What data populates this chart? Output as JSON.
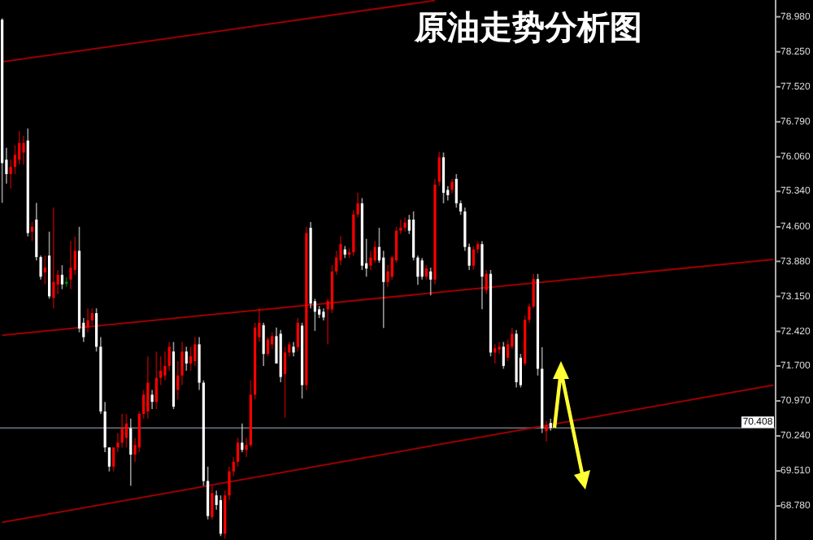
{
  "chart_data": {
    "type": "candlestick",
    "title": "原油走势分析图",
    "categories": [
      null,
      null,
      null,
      null,
      null,
      null,
      null,
      null,
      null,
      null,
      null,
      null,
      null,
      null,
      null,
      null,
      null,
      null,
      null,
      null,
      null,
      null,
      null,
      null,
      null,
      null,
      null,
      null,
      null,
      null,
      null,
      null,
      null,
      null,
      null,
      null,
      null,
      null,
      null,
      null,
      null,
      null,
      null,
      null,
      null,
      null,
      null,
      null,
      null,
      null,
      null,
      null,
      null,
      null,
      null,
      null,
      null,
      null,
      null,
      null,
      null,
      null,
      null,
      null,
      null,
      null,
      null,
      null,
      null,
      null,
      null,
      null,
      null,
      null,
      null,
      null,
      null,
      null,
      null,
      null,
      null,
      null,
      null,
      null,
      null,
      null,
      null,
      null,
      null,
      null,
      null,
      null,
      null,
      null,
      null,
      null,
      null,
      null,
      null,
      null,
      null,
      null,
      null,
      null,
      null,
      null,
      null,
      null,
      null,
      null,
      null,
      null,
      null,
      null,
      null,
      null,
      null,
      null,
      null,
      null,
      null,
      null,
      null,
      null,
      null,
      null,
      null,
      null,
      null,
      null,
      null,
      null,
      null,
      null,
      null,
      null,
      null,
      null,
      null,
      null,
      null,
      null,
      null,
      null,
      null,
      null,
      null,
      null,
      null,
      null,
      null,
      null,
      null,
      null,
      null,
      null,
      null,
      null,
      null,
      null,
      null,
      null,
      null,
      null,
      null,
      null,
      null,
      null,
      null,
      null,
      null,
      null,
      null,
      null,
      null,
      null,
      null,
      null,
      null,
      null,
      null
    ],
    "ohlc": [
      [
        78.92,
        78.95,
        75.1,
        75.93
      ],
      [
        76.0,
        76.25,
        75.5,
        75.7
      ],
      [
        75.7,
        76.0,
        75.4,
        75.85
      ],
      [
        75.85,
        76.3,
        75.7,
        76.1
      ],
      [
        76.0,
        76.6,
        75.9,
        76.35
      ],
      [
        76.15,
        76.5,
        75.9,
        76.35
      ],
      [
        76.4,
        76.65,
        74.4,
        74.47
      ],
      [
        74.5,
        74.7,
        74.3,
        74.6
      ],
      [
        74.75,
        75.1,
        73.9,
        73.97
      ],
      [
        73.97,
        74.0,
        73.5,
        73.56
      ],
      [
        73.65,
        74.0,
        73.4,
        73.75
      ],
      [
        74.0,
        74.5,
        73.1,
        73.15
      ],
      [
        73.12,
        75.0,
        72.9,
        73.45
      ],
      [
        73.4,
        73.7,
        73.2,
        73.6
      ],
      [
        73.6,
        73.8,
        73.3,
        73.4
      ],
      [
        73.45,
        73.55,
        73.35,
        73.42
      ],
      [
        73.5,
        74.3,
        73.3,
        73.75
      ],
      [
        73.7,
        74.4,
        73.6,
        74.1
      ],
      [
        74.1,
        74.6,
        72.4,
        72.48
      ],
      [
        72.6,
        72.7,
        72.2,
        72.3
      ],
      [
        72.5,
        72.9,
        72.4,
        72.65
      ],
      [
        72.65,
        72.9,
        72.55,
        72.8
      ],
      [
        72.8,
        72.9,
        72.0,
        72.1
      ],
      [
        72.1,
        72.3,
        70.7,
        70.75
      ],
      [
        70.75,
        70.95,
        69.9,
        70.0
      ],
      [
        70.0,
        70.0,
        69.5,
        69.6
      ],
      [
        69.6,
        70.0,
        69.5,
        70.0
      ],
      [
        70.0,
        70.3,
        69.9,
        70.1
      ],
      [
        70.1,
        70.7,
        70.0,
        70.4
      ],
      [
        70.2,
        70.7,
        70.0,
        70.5
      ],
      [
        70.4,
        70.6,
        69.2,
        69.85
      ],
      [
        69.85,
        70.2,
        69.7,
        70.05
      ],
      [
        70.0,
        70.75,
        69.9,
        70.7
      ],
      [
        70.7,
        71.2,
        70.6,
        71.1
      ],
      [
        70.75,
        71.9,
        70.6,
        71.35
      ],
      [
        71.1,
        71.2,
        70.8,
        70.95
      ],
      [
        70.95,
        72.0,
        70.8,
        71.45
      ],
      [
        71.45,
        71.9,
        71.3,
        71.6
      ],
      [
        71.5,
        72.0,
        71.4,
        71.7
      ],
      [
        71.7,
        72.2,
        71.6,
        72.1
      ],
      [
        72.0,
        72.2,
        70.8,
        70.85
      ],
      [
        71.2,
        71.8,
        71.0,
        71.5
      ],
      [
        71.5,
        72.2,
        71.3,
        72.0
      ],
      [
        72.0,
        72.1,
        71.6,
        71.75
      ],
      [
        71.75,
        72.1,
        71.6,
        71.9
      ],
      [
        71.8,
        72.3,
        71.7,
        72.15
      ],
      [
        72.15,
        72.3,
        71.2,
        71.35
      ],
      [
        71.35,
        71.4,
        69.2,
        69.3
      ],
      [
        69.3,
        69.6,
        68.5,
        68.57
      ],
      [
        68.55,
        69.2,
        68.5,
        69.05
      ],
      [
        69.0,
        69.1,
        68.7,
        68.8
      ],
      [
        68.9,
        69.0,
        68.15,
        68.2
      ],
      [
        68.2,
        69.1,
        68.1,
        69.0
      ],
      [
        69.0,
        69.6,
        68.9,
        69.5
      ],
      [
        69.5,
        69.8,
        69.4,
        69.7
      ],
      [
        69.7,
        70.2,
        69.6,
        70.1
      ],
      [
        70.1,
        70.5,
        69.9,
        69.95
      ],
      [
        69.95,
        70.2,
        69.8,
        70.05
      ],
      [
        70.05,
        71.4,
        70.0,
        71.1
      ],
      [
        71.1,
        72.6,
        71.0,
        72.5
      ],
      [
        72.3,
        72.9,
        72.2,
        72.6
      ],
      [
        72.55,
        72.6,
        71.7,
        71.95
      ],
      [
        71.95,
        72.3,
        71.9,
        72.25
      ],
      [
        72.15,
        72.4,
        72.05,
        72.32
      ],
      [
        72.32,
        72.5,
        71.75,
        71.75
      ],
      [
        72.37,
        72.45,
        71.36,
        71.47
      ],
      [
        71.53,
        72.1,
        70.62,
        71.98
      ],
      [
        71.98,
        72.2,
        71.9,
        72.15
      ],
      [
        72.1,
        72.2,
        71.9,
        71.98
      ],
      [
        72.09,
        72.7,
        72.0,
        72.6
      ],
      [
        72.54,
        72.6,
        71.02,
        71.3
      ],
      [
        71.3,
        74.6,
        71.2,
        74.47
      ],
      [
        74.58,
        74.7,
        72.9,
        73.0
      ],
      [
        73.05,
        73.1,
        72.43,
        72.83
      ],
      [
        72.88,
        72.95,
        72.7,
        72.77
      ],
      [
        72.83,
        72.9,
        72.65,
        72.71
      ],
      [
        72.88,
        73.1,
        72.15,
        73.05
      ],
      [
        72.88,
        73.8,
        72.8,
        73.67
      ],
      [
        73.67,
        74.1,
        73.6,
        73.96
      ],
      [
        73.9,
        74.41,
        73.8,
        74.24
      ],
      [
        74.13,
        74.2,
        73.95,
        74.02
      ],
      [
        74.02,
        74.15,
        73.95,
        74.07
      ],
      [
        74.07,
        74.95,
        74.0,
        74.86
      ],
      [
        74.86,
        75.31,
        74.8,
        75.09
      ],
      [
        75.09,
        75.2,
        73.7,
        73.79
      ],
      [
        73.84,
        74.35,
        73.56,
        73.73
      ],
      [
        73.79,
        74.1,
        73.7,
        73.96
      ],
      [
        73.9,
        74.3,
        73.85,
        74.18
      ],
      [
        74.18,
        74.58,
        73.85,
        73.9
      ],
      [
        73.96,
        74.1,
        72.49,
        73.45
      ],
      [
        73.45,
        73.8,
        73.35,
        73.67
      ],
      [
        73.56,
        74.0,
        73.5,
        73.96
      ],
      [
        73.9,
        74.6,
        73.85,
        74.52
      ],
      [
        74.52,
        74.75,
        74.45,
        74.58
      ],
      [
        74.58,
        74.8,
        74.5,
        74.69
      ],
      [
        74.75,
        74.85,
        74.45,
        74.52
      ],
      [
        74.75,
        74.92,
        73.9,
        73.96
      ],
      [
        73.96,
        74.0,
        73.39,
        73.56
      ],
      [
        73.9,
        73.95,
        73.5,
        73.56
      ],
      [
        73.56,
        73.8,
        73.5,
        73.73
      ],
      [
        73.67,
        73.75,
        73.17,
        73.5
      ],
      [
        73.5,
        75.6,
        73.4,
        75.48
      ],
      [
        75.54,
        76.16,
        75.45,
        76.05
      ],
      [
        76.05,
        76.15,
        75.09,
        75.31
      ],
      [
        75.37,
        75.45,
        75.15,
        75.26
      ],
      [
        75.37,
        75.6,
        75.3,
        75.54
      ],
      [
        75.6,
        75.7,
        75.0,
        75.09
      ],
      [
        75.09,
        75.15,
        74.85,
        74.92
      ],
      [
        74.92,
        75.0,
        74.1,
        74.18
      ],
      [
        74.18,
        74.25,
        73.7,
        73.79
      ],
      [
        73.79,
        74.2,
        73.7,
        74.13
      ],
      [
        74.13,
        74.3,
        74.05,
        74.24
      ],
      [
        74.24,
        74.3,
        72.88,
        73.56
      ],
      [
        73.28,
        73.7,
        73.2,
        73.62
      ],
      [
        73.62,
        73.7,
        71.9,
        71.98
      ],
      [
        71.98,
        72.15,
        71.75,
        72.07
      ],
      [
        72.04,
        72.2,
        71.95,
        72.1
      ],
      [
        72.1,
        72.2,
        71.64,
        71.7
      ],
      [
        71.87,
        72.25,
        71.8,
        72.15
      ],
      [
        72.1,
        72.49,
        72.05,
        72.37
      ],
      [
        72.37,
        72.45,
        71.25,
        71.36
      ],
      [
        71.87,
        71.95,
        71.25,
        71.3
      ],
      [
        71.75,
        72.75,
        71.7,
        72.66
      ],
      [
        72.66,
        73.0,
        72.6,
        72.94
      ],
      [
        72.94,
        73.62,
        72.9,
        73.51
      ],
      [
        73.51,
        73.62,
        71.5,
        71.64
      ],
      [
        71.64,
        72.09,
        70.3,
        70.4
      ],
      [
        70.34,
        70.55,
        70.12,
        70.46
      ],
      [
        70.51,
        70.6,
        70.35,
        70.41
      ],
      null,
      null,
      null,
      null,
      null,
      null,
      null,
      null,
      null,
      null,
      null,
      null,
      null,
      null,
      null,
      null,
      null,
      null,
      null,
      null,
      null,
      null,
      null,
      null,
      null,
      null,
      null,
      null,
      null,
      null,
      null,
      null,
      null,
      null,
      null,
      null,
      null,
      null,
      null,
      null,
      null,
      null,
      null,
      null,
      null,
      null,
      null,
      null,
      null,
      null,
      null,
      null
    ],
    "colors": [
      "#ffffff",
      "#ffffff",
      "#ff0000",
      "#ff0000",
      "#ff0000",
      "#ff0000",
      "#ffffff",
      "#ff0000",
      "#ffffff",
      "#ffffff",
      "#ff0000",
      "#ffffff",
      "#ff0000",
      "#ff0000",
      "#ffffff",
      "#00a000",
      "#ff0000",
      "#ff0000",
      "#ffffff",
      "#ffffff",
      "#ff0000",
      "#ff0000",
      "#ffffff",
      "#ffffff",
      "#ffffff",
      "#ffffff",
      "#ff0000",
      "#ff0000",
      "#ff0000",
      "#ff0000",
      "#ffffff",
      "#ff0000",
      "#ff0000",
      "#ff0000",
      "#ff0000",
      "#ffffff",
      "#ff0000",
      "#ff0000",
      "#ff0000",
      "#ff0000",
      "#ffffff",
      "#ff0000",
      "#ff0000",
      "#ffffff",
      "#ff0000",
      "#ff0000",
      "#ffffff",
      "#ffffff",
      "#ffffff",
      "#ff0000",
      "#ffffff",
      "#ffffff",
      "#ff0000",
      "#ff0000",
      "#ff0000",
      "#ff0000",
      "#ffffff",
      "#ff0000",
      "#ff0000",
      "#ff0000",
      "#ff0000",
      "#ffffff",
      "#ff0000",
      "#ff0000",
      "#ffffff",
      "#ffffff",
      "#ff0000",
      "#ff0000",
      "#ffffff",
      "#ff0000",
      "#ffffff",
      "#ff0000",
      "#ffffff",
      "#ffffff",
      "#ffffff",
      "#ffffff",
      "#ff0000",
      "#ff0000",
      "#ff0000",
      "#ff0000",
      "#ffffff",
      "#ff0000",
      "#ff0000",
      "#ff0000",
      "#ffffff",
      "#ffffff",
      "#ff0000",
      "#ff0000",
      "#ffffff",
      "#ffffff",
      "#ff0000",
      "#ff0000",
      "#ff0000",
      "#ff0000",
      "#ff0000",
      "#ffffff",
      "#ffffff",
      "#ffffff",
      "#ffffff",
      "#ff0000",
      "#ffffff",
      "#ff0000",
      "#ff0000",
      "#ffffff",
      "#ffffff",
      "#ff0000",
      "#ffffff",
      "#ffffff",
      "#ffffff",
      "#ffffff",
      "#ff0000",
      "#ff0000",
      "#ffffff",
      "#ff0000",
      "#ffffff",
      "#ff0000",
      "#ff0000",
      "#ffffff",
      "#ff0000",
      "#ff0000",
      "#ffffff",
      "#ffffff",
      "#ff0000",
      "#ff0000",
      "#ff0000",
      "#ffffff",
      "#ffffff",
      "#ff0000",
      "#ffffff",
      null,
      null,
      null,
      null,
      null,
      null,
      null,
      null,
      null,
      null,
      null,
      null,
      null,
      null,
      null,
      null,
      null,
      null,
      null,
      null,
      null,
      null,
      null,
      null,
      null,
      null,
      null,
      null,
      null,
      null,
      null,
      null,
      null,
      null,
      null,
      null,
      null,
      null,
      null,
      null,
      null,
      null,
      null,
      null,
      null,
      null,
      null,
      null,
      null,
      null,
      null,
      null
    ],
    "series": [
      {
        "type": "line",
        "color": "#9a0000",
        "values": [
          78.04,
          null,
          null,
          null,
          null,
          null,
          null,
          null,
          null,
          null,
          null,
          null,
          null,
          null,
          null,
          null,
          null,
          null,
          null,
          null,
          null,
          null,
          null,
          null,
          null,
          null,
          null,
          null,
          null,
          null,
          null,
          null,
          null,
          null,
          null,
          null,
          null,
          null,
          null,
          null,
          null,
          null,
          null,
          null,
          null,
          null,
          null,
          null,
          null,
          null,
          null,
          null,
          null,
          null,
          null,
          null,
          null,
          null,
          null,
          null,
          null,
          null,
          null,
          null,
          null,
          null,
          null,
          null,
          null,
          null,
          null,
          null,
          null,
          null,
          null,
          null,
          null,
          null,
          null,
          null,
          null,
          null,
          null,
          null,
          null,
          null,
          null,
          null,
          null,
          null,
          null,
          null,
          null,
          null,
          null,
          null,
          null,
          null,
          null,
          null,
          null,
          79.32,
          null,
          null,
          null,
          null,
          null,
          null,
          null,
          null,
          null,
          null,
          null,
          null,
          null,
          null,
          null,
          null,
          null,
          null,
          null,
          null,
          null,
          null,
          null,
          null,
          null,
          null,
          null,
          null,
          null,
          null,
          null,
          null,
          null,
          null,
          null,
          null,
          null,
          null,
          null,
          null,
          null,
          null,
          null,
          null,
          null,
          null,
          null,
          null,
          null,
          null,
          null,
          null,
          null,
          null,
          null,
          null,
          null,
          null,
          null,
          null,
          null,
          null,
          null,
          null,
          null,
          null,
          null,
          null,
          null,
          null,
          null,
          null,
          null,
          null,
          null,
          null,
          null,
          null,
          null
        ]
      },
      {
        "type": "line",
        "color": "#9a0000",
        "values": [
          72.34,
          null,
          null,
          null,
          null,
          null,
          null,
          null,
          null,
          null,
          null,
          null,
          null,
          null,
          null,
          null,
          null,
          null,
          null,
          null,
          null,
          null,
          null,
          null,
          null,
          null,
          null,
          null,
          null,
          null,
          null,
          null,
          null,
          null,
          null,
          null,
          null,
          null,
          null,
          null,
          null,
          null,
          null,
          null,
          null,
          null,
          null,
          null,
          null,
          null,
          null,
          null,
          null,
          null,
          null,
          null,
          null,
          null,
          null,
          null,
          null,
          null,
          null,
          null,
          null,
          null,
          null,
          null,
          null,
          null,
          null,
          null,
          null,
          null,
          null,
          null,
          null,
          null,
          null,
          null,
          null,
          null,
          null,
          null,
          null,
          null,
          null,
          null,
          null,
          null,
          null,
          null,
          null,
          null,
          null,
          null,
          null,
          null,
          null,
          null,
          null,
          null,
          null,
          null,
          null,
          null,
          null,
          null,
          null,
          null,
          null,
          null,
          null,
          null,
          null,
          null,
          null,
          null,
          null,
          null,
          null,
          null,
          null,
          null,
          null,
          null,
          null,
          null,
          null,
          null,
          null,
          null,
          null,
          null,
          null,
          null,
          null,
          null,
          null,
          null,
          null,
          null,
          null,
          null,
          null,
          null,
          null,
          null,
          null,
          null,
          null,
          null,
          null,
          null,
          null,
          null,
          null,
          null,
          null,
          null,
          null,
          null,
          null,
          null,
          null,
          null,
          null,
          null,
          null,
          null,
          null,
          null,
          null,
          null,
          null,
          null,
          null,
          null,
          null,
          null,
          73.92
        ]
      },
      {
        "type": "line",
        "color": "#9a0000",
        "values": [
          68.44,
          null,
          null,
          null,
          null,
          null,
          null,
          null,
          null,
          null,
          null,
          null,
          null,
          null,
          null,
          null,
          null,
          null,
          null,
          null,
          null,
          null,
          null,
          null,
          null,
          null,
          null,
          null,
          null,
          null,
          null,
          null,
          null,
          null,
          null,
          null,
          null,
          null,
          null,
          null,
          null,
          null,
          null,
          null,
          null,
          null,
          null,
          null,
          null,
          null,
          null,
          null,
          null,
          null,
          null,
          null,
          null,
          null,
          null,
          null,
          null,
          null,
          null,
          null,
          null,
          null,
          null,
          null,
          null,
          null,
          null,
          null,
          null,
          null,
          null,
          null,
          null,
          null,
          null,
          null,
          null,
          null,
          null,
          null,
          null,
          null,
          null,
          null,
          null,
          null,
          null,
          null,
          null,
          null,
          null,
          null,
          null,
          null,
          null,
          null,
          null,
          null,
          null,
          null,
          null,
          null,
          null,
          null,
          null,
          null,
          null,
          null,
          null,
          null,
          null,
          null,
          null,
          null,
          null,
          null,
          null,
          null,
          null,
          null,
          null,
          null,
          null,
          null,
          null,
          null,
          null,
          null,
          null,
          null,
          null,
          null,
          null,
          null,
          null,
          null,
          null,
          null,
          null,
          null,
          null,
          null,
          null,
          null,
          null,
          null,
          null,
          null,
          null,
          null,
          null,
          null,
          null,
          null,
          null,
          null,
          null,
          null,
          null,
          null,
          null,
          null,
          null,
          null,
          null,
          null,
          null,
          null,
          null,
          null,
          null,
          null,
          null,
          null,
          null,
          null,
          71.3
        ]
      }
    ],
    "ylim": [
      68.07,
      79.33
    ],
    "yticks": [
      {
        "value": 78.98,
        "label": "78.980"
      },
      {
        "value": 78.25,
        "label": "78.250"
      },
      {
        "value": 77.52,
        "label": "77.520"
      },
      {
        "value": 76.79,
        "label": "76.790"
      },
      {
        "value": 76.06,
        "label": "76.060"
      },
      {
        "value": 75.34,
        "label": "75.340"
      },
      {
        "value": 74.6,
        "label": "74.600"
      },
      {
        "value": 73.88,
        "label": "73.880"
      },
      {
        "value": 73.15,
        "label": "73.150"
      },
      {
        "value": 72.42,
        "label": "72.420"
      },
      {
        "value": 71.7,
        "label": "71.700"
      },
      {
        "value": 70.97,
        "label": "70.970"
      },
      {
        "value": 70.24,
        "label": "70.240"
      },
      {
        "value": 69.51,
        "label": "69.510"
      },
      {
        "value": 68.78,
        "label": "68.780"
      }
    ],
    "tick_labels": "y",
    "ref_lines": [
      {
        "axis": "y",
        "value": 70.408,
        "label": "70.408",
        "color": "#5a5f6a"
      }
    ]
  }
}
